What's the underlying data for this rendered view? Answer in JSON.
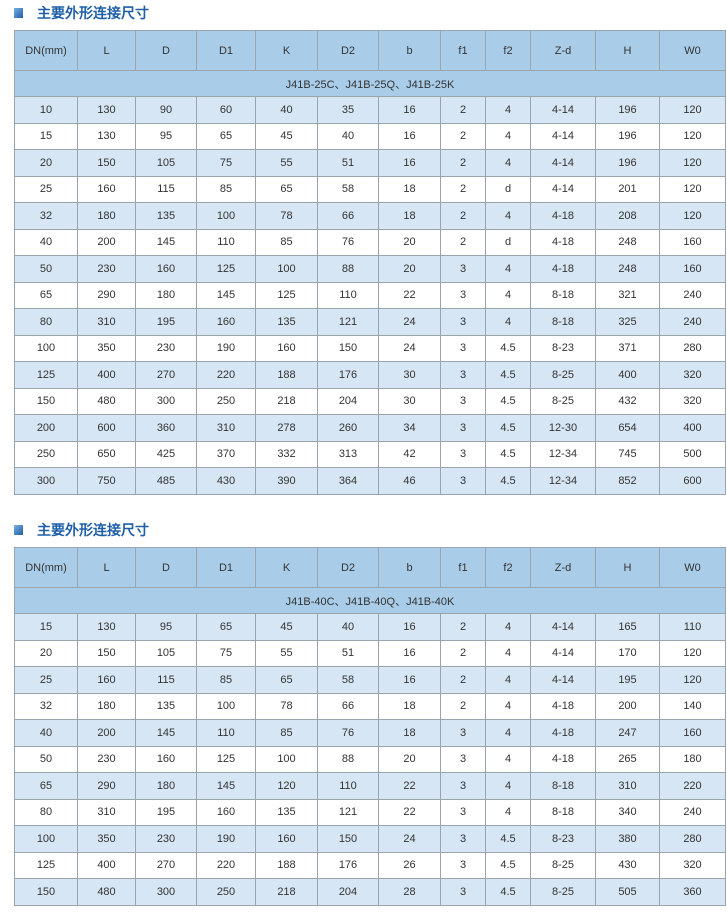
{
  "columns": [
    "DN(mm)",
    "L",
    "D",
    "D1",
    "K",
    "D2",
    "b",
    "f1",
    "f2",
    "Z-d",
    "H",
    "W0"
  ],
  "tables": [
    {
      "title": "主要外形连接尺寸",
      "model": "J41B-25C、J41B-25Q、J41B-25K",
      "rows": [
        [
          "10",
          "130",
          "90",
          "60",
          "40",
          "35",
          "16",
          "2",
          "4",
          "4-14",
          "196",
          "120"
        ],
        [
          "15",
          "130",
          "95",
          "65",
          "45",
          "40",
          "16",
          "2",
          "4",
          "4-14",
          "196",
          "120"
        ],
        [
          "20",
          "150",
          "105",
          "75",
          "55",
          "51",
          "16",
          "2",
          "4",
          "4-14",
          "196",
          "120"
        ],
        [
          "25",
          "160",
          "115",
          "85",
          "65",
          "58",
          "18",
          "2",
          "d",
          "4-14",
          "201",
          "120"
        ],
        [
          "32",
          "180",
          "135",
          "100",
          "78",
          "66",
          "18",
          "2",
          "4",
          "4-18",
          "208",
          "120"
        ],
        [
          "40",
          "200",
          "145",
          "110",
          "85",
          "76",
          "20",
          "2",
          "d",
          "4-18",
          "248",
          "160"
        ],
        [
          "50",
          "230",
          "160",
          "125",
          "100",
          "88",
          "20",
          "3",
          "4",
          "4-18",
          "248",
          "160"
        ],
        [
          "65",
          "290",
          "180",
          "145",
          "125",
          "110",
          "22",
          "3",
          "4",
          "8-18",
          "321",
          "240"
        ],
        [
          "80",
          "310",
          "195",
          "160",
          "135",
          "121",
          "24",
          "3",
          "4",
          "8-18",
          "325",
          "240"
        ],
        [
          "100",
          "350",
          "230",
          "190",
          "160",
          "150",
          "24",
          "3",
          "4.5",
          "8-23",
          "371",
          "280"
        ],
        [
          "125",
          "400",
          "270",
          "220",
          "188",
          "176",
          "30",
          "3",
          "4.5",
          "8-25",
          "400",
          "320"
        ],
        [
          "150",
          "480",
          "300",
          "250",
          "218",
          "204",
          "30",
          "3",
          "4.5",
          "8-25",
          "432",
          "320"
        ],
        [
          "200",
          "600",
          "360",
          "310",
          "278",
          "260",
          "34",
          "3",
          "4.5",
          "12-30",
          "654",
          "400"
        ],
        [
          "250",
          "650",
          "425",
          "370",
          "332",
          "313",
          "42",
          "3",
          "4.5",
          "12-34",
          "745",
          "500"
        ],
        [
          "300",
          "750",
          "485",
          "430",
          "390",
          "364",
          "46",
          "3",
          "4.5",
          "12-34",
          "852",
          "600"
        ]
      ]
    },
    {
      "title": "主要外形连接尺寸",
      "model": "J41B-40C、J41B-40Q、J41B-40K",
      "rows": [
        [
          "15",
          "130",
          "95",
          "65",
          "45",
          "40",
          "16",
          "2",
          "4",
          "4-14",
          "165",
          "110"
        ],
        [
          "20",
          "150",
          "105",
          "75",
          "55",
          "51",
          "16",
          "2",
          "4",
          "4-14",
          "170",
          "120"
        ],
        [
          "25",
          "160",
          "115",
          "85",
          "65",
          "58",
          "16",
          "2",
          "4",
          "4-14",
          "195",
          "120"
        ],
        [
          "32",
          "180",
          "135",
          "100",
          "78",
          "66",
          "18",
          "2",
          "4",
          "4-18",
          "200",
          "140"
        ],
        [
          "40",
          "200",
          "145",
          "110",
          "85",
          "76",
          "18",
          "3",
          "4",
          "4-18",
          "247",
          "160"
        ],
        [
          "50",
          "230",
          "160",
          "125",
          "100",
          "88",
          "20",
          "3",
          "4",
          "4-18",
          "265",
          "180"
        ],
        [
          "65",
          "290",
          "180",
          "145",
          "120",
          "110",
          "22",
          "3",
          "4",
          "8-18",
          "310",
          "220"
        ],
        [
          "80",
          "310",
          "195",
          "160",
          "135",
          "121",
          "22",
          "3",
          "4",
          "8-18",
          "340",
          "240"
        ],
        [
          "100",
          "350",
          "230",
          "190",
          "160",
          "150",
          "24",
          "3",
          "4.5",
          "8-23",
          "380",
          "280"
        ],
        [
          "125",
          "400",
          "270",
          "220",
          "188",
          "176",
          "26",
          "3",
          "4.5",
          "8-25",
          "430",
          "320"
        ],
        [
          "150",
          "480",
          "300",
          "250",
          "218",
          "204",
          "28",
          "3",
          "4.5",
          "8-25",
          "505",
          "360"
        ]
      ]
    }
  ]
}
